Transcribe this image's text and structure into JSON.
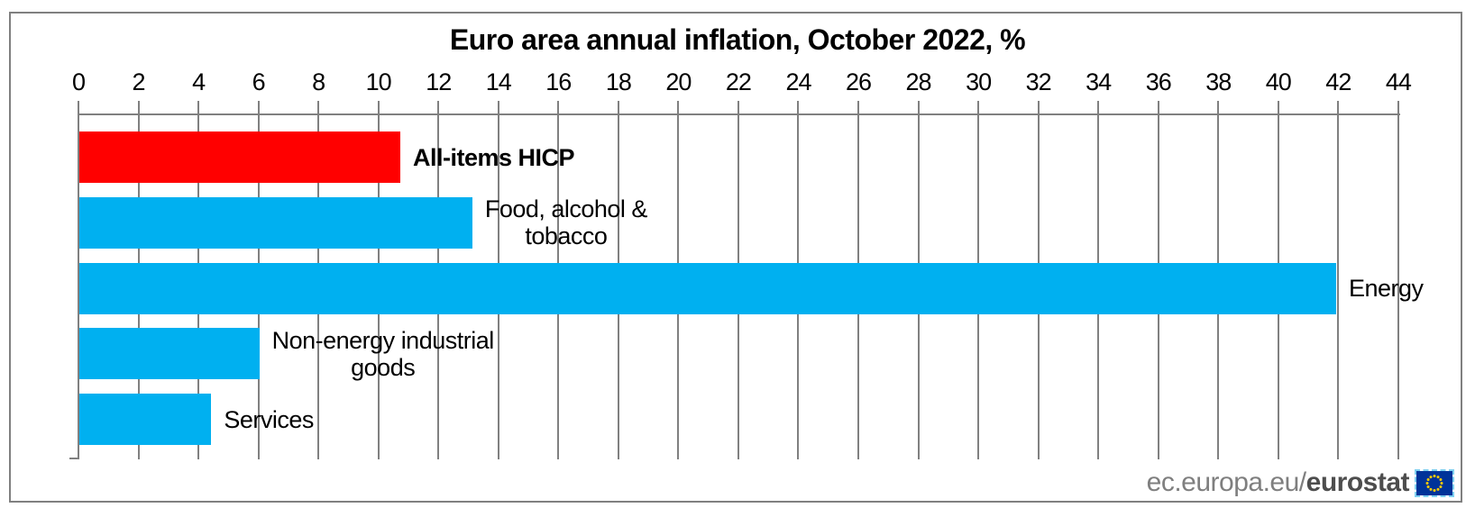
{
  "chart_data": {
    "type": "bar",
    "orientation": "horizontal",
    "title": "Euro area annual inflation, October 2022, %",
    "categories": [
      "All-items HICP",
      "Food, alcohol & tobacco",
      "Energy",
      "Non-energy industrial goods",
      "Services"
    ],
    "values": [
      10.7,
      13.1,
      41.9,
      6.0,
      4.4
    ],
    "label_lines": [
      [
        "All-items HICP"
      ],
      [
        "Food, alcohol &",
        "tobacco"
      ],
      [
        "Energy"
      ],
      [
        "Non-energy industrial",
        "goods"
      ],
      [
        "Services"
      ]
    ],
    "label_bold": [
      true,
      false,
      false,
      false,
      false
    ],
    "bar_colors": [
      "#FF0000",
      "#00B0F0",
      "#00B0F0",
      "#00B0F0",
      "#00B0F0"
    ],
    "xlim": [
      0,
      44
    ],
    "tick_step": 2,
    "axis_position": "top",
    "grid": true,
    "legend": "none"
  },
  "colors": {
    "highlight_bar": "#FF0000",
    "default_bar": "#00B0F0",
    "grid": "#808080",
    "frame": "#808080",
    "footer_gray": "#7F7F7F",
    "footer_dark": "#4D4D4D",
    "flag_blue": "#003399",
    "flag_star_yellow": "#FFCC00"
  },
  "footer": {
    "prefix": "ec.europa.eu/",
    "brand": "eurostat",
    "flag_icon": "eu-flag"
  }
}
